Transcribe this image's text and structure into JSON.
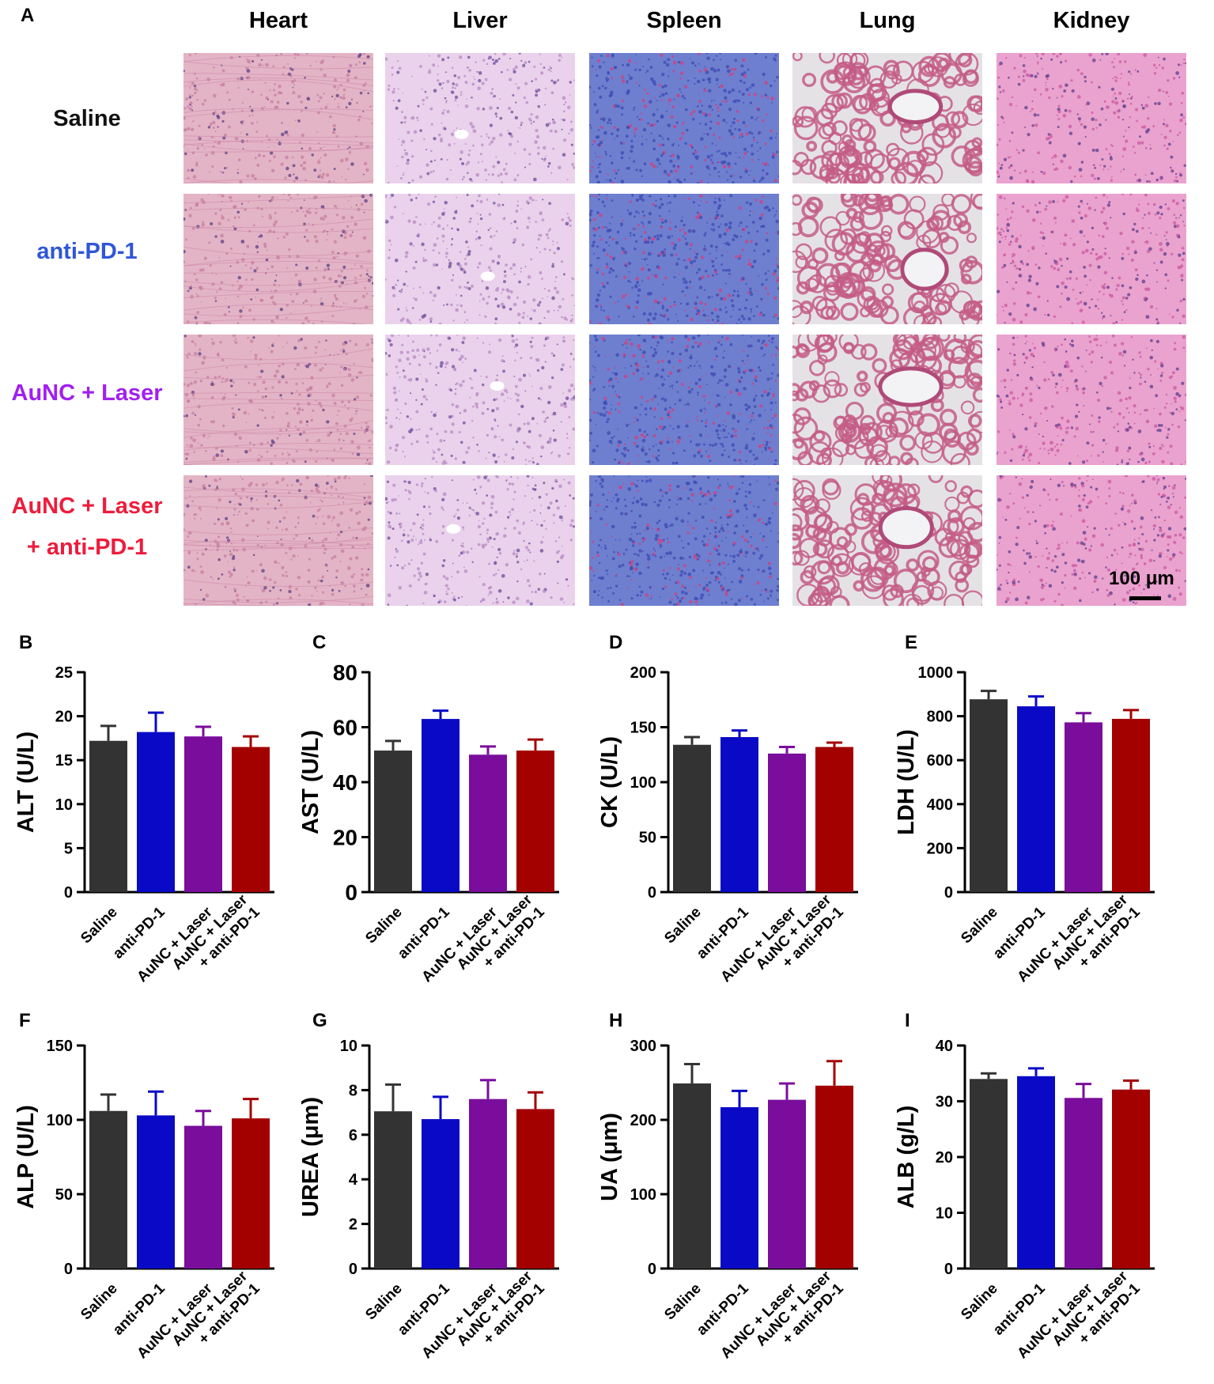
{
  "histology": {
    "panel_letter": "A",
    "organs": [
      "Heart",
      "Liver",
      "Spleen",
      "Lung",
      "Kidney"
    ],
    "groups": [
      {
        "label_lines": [
          "Saline"
        ],
        "color": "#111111"
      },
      {
        "label_lines": [
          "anti-PD-1"
        ],
        "color": "#2f56d8"
      },
      {
        "label_lines": [
          "AuNC + Laser"
        ],
        "color": "#a020f0"
      },
      {
        "label_lines": [
          "AuNC + Laser",
          "+ anti-PD-1"
        ],
        "color": "#ee1c3c"
      }
    ],
    "scale_bar_label": "100 μm",
    "tissue_colors": {
      "heart": "#e3b4c6",
      "liver": "#ead2ec",
      "spleen": "#6e7fd0",
      "lung_bg": "#e5e2e6",
      "lung_tissue": "#c45c86",
      "kidney": "#eaa2cf"
    }
  },
  "bar_colors": [
    "#333333",
    "#0a0ac6",
    "#7a0d9c",
    "#a30000"
  ],
  "chart_data": [
    {
      "panel": "B",
      "type": "bar",
      "ylabel": "ALT (U/L)",
      "categories": [
        "Saline",
        "anti-PD-1",
        "AuNC + Laser",
        [
          "AuNC + Laser",
          "+ anti-PD-1"
        ]
      ],
      "values": [
        17.2,
        18.2,
        17.7,
        16.5
      ],
      "errors": [
        1.7,
        2.2,
        1.1,
        1.2
      ],
      "ylim": [
        0,
        25
      ],
      "yticks": [
        0,
        5,
        10,
        15,
        20,
        25
      ]
    },
    {
      "panel": "C",
      "type": "bar",
      "ylabel": "AST (U/L)",
      "categories": [
        "Saline",
        "anti-PD-1",
        "AuNC + Laser",
        [
          "AuNC + Laser",
          "+ anti-PD-1"
        ]
      ],
      "values": [
        51.5,
        63,
        50,
        51.5
      ],
      "errors": [
        3.5,
        3,
        3,
        4
      ],
      "ylim": [
        0,
        80
      ],
      "yticks": [
        0,
        20,
        40,
        60,
        80
      ]
    },
    {
      "panel": "D",
      "type": "bar",
      "ylabel": "CK (U/L)",
      "categories": [
        "Saline",
        "anti-PD-1",
        "AuNC + Laser",
        [
          "AuNC + Laser",
          "+ anti-PD-1"
        ]
      ],
      "values": [
        134,
        141,
        126,
        132
      ],
      "errors": [
        7,
        6,
        6,
        4
      ],
      "ylim": [
        0,
        200
      ],
      "yticks": [
        0,
        50,
        100,
        150,
        200
      ]
    },
    {
      "panel": "E",
      "type": "bar",
      "ylabel": "LDH (U/L)",
      "categories": [
        "Saline",
        "anti-PD-1",
        "AuNC + Laser",
        [
          "AuNC + Laser",
          "+ anti-PD-1"
        ]
      ],
      "values": [
        877,
        845,
        772,
        788
      ],
      "errors": [
        38,
        45,
        42,
        40
      ],
      "ylim": [
        0,
        1000
      ],
      "yticks": [
        0,
        200,
        400,
        600,
        800,
        1000
      ]
    },
    {
      "panel": "F",
      "type": "bar",
      "ylabel": "ALP (U/L)",
      "categories": [
        "Saline",
        "anti-PD-1",
        "AuNC + Laser",
        [
          "AuNC + Laser",
          "+ anti-PD-1"
        ]
      ],
      "values": [
        106,
        103,
        96,
        101
      ],
      "errors": [
        11,
        16,
        10,
        13
      ],
      "ylim": [
        0,
        150
      ],
      "yticks": [
        0,
        50,
        100,
        150
      ]
    },
    {
      "panel": "G",
      "type": "bar",
      "ylabel": "UREA (μm)",
      "categories": [
        "Saline",
        "anti-PD-1",
        "AuNC + Laser",
        [
          "AuNC + Laser",
          "+ anti-PD-1"
        ]
      ],
      "values": [
        7.05,
        6.7,
        7.6,
        7.15
      ],
      "errors": [
        1.2,
        1.0,
        0.85,
        0.75
      ],
      "ylim": [
        0,
        10
      ],
      "yticks": [
        0,
        2,
        4,
        6,
        8,
        10
      ]
    },
    {
      "panel": "H",
      "type": "bar",
      "ylabel": "UA (μm)",
      "categories": [
        "Saline",
        "anti-PD-1",
        "AuNC + Laser",
        [
          "AuNC + Laser",
          "+ anti-PD-1"
        ]
      ],
      "values": [
        249,
        217,
        227,
        246
      ],
      "errors": [
        26,
        22,
        22,
        33
      ],
      "ylim": [
        0,
        300
      ],
      "yticks": [
        0,
        100,
        200,
        300
      ]
    },
    {
      "panel": "I",
      "type": "bar",
      "ylabel": "ALB (g/L)",
      "categories": [
        "Saline",
        "anti-PD-1",
        "AuNC + Laser",
        [
          "AuNC + Laser",
          "+ anti-PD-1"
        ]
      ],
      "values": [
        34,
        34.5,
        30.6,
        32.1
      ],
      "errors": [
        1,
        1.4,
        2.5,
        1.6
      ],
      "ylim": [
        0,
        40
      ],
      "yticks": [
        0,
        10,
        20,
        30,
        40
      ]
    }
  ]
}
